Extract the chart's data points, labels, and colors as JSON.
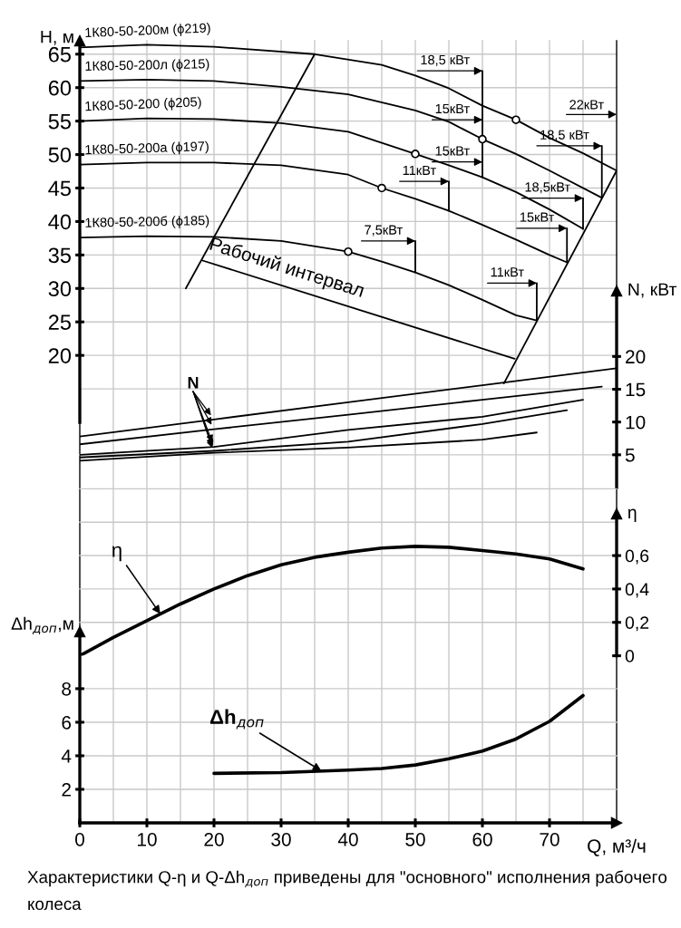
{
  "chart_data": [
    {
      "type": "line",
      "ylabel": "H, м",
      "xlim": [
        0,
        80
      ],
      "ylim": [
        10,
        67
      ],
      "yticks": [
        20,
        25,
        30,
        35,
        40,
        45,
        50,
        55,
        60,
        65
      ],
      "tick_labels": "y",
      "grid": true,
      "series": [
        {
          "name": "1К80-50-200м (ϕ219)",
          "color": "#000000",
          "x": [
            0,
            10,
            20,
            35,
            45,
            50,
            55,
            60,
            65,
            70,
            75,
            80
          ],
          "values": [
            66.0,
            66.4,
            66.1,
            65.0,
            63.4,
            61.8,
            59.9,
            57.3,
            55.2,
            52.5,
            50.2,
            47.6
          ]
        },
        {
          "name": "1К80-50-200л (ϕ215)",
          "color": "#000000",
          "x": [
            0,
            10,
            20,
            30,
            40,
            50,
            55,
            60,
            65,
            70,
            77.7
          ],
          "values": [
            61.0,
            61.2,
            61.0,
            60.1,
            59.0,
            56.6,
            54.9,
            52.3,
            50.1,
            47.6,
            43.6
          ]
        },
        {
          "name": "1К80-50-200 (ϕ205)",
          "color": "#000000",
          "x": [
            0,
            10,
            20,
            30,
            40,
            50,
            55,
            60,
            65,
            70,
            75
          ],
          "values": [
            55.0,
            55.4,
            55.3,
            54.7,
            53.4,
            50.1,
            48.4,
            46.6,
            44.4,
            41.8,
            38.9
          ]
        },
        {
          "name": "1К80-50-200а (ϕ197)",
          "color": "#000000",
          "x": [
            0,
            10,
            20,
            30,
            40,
            45,
            50,
            55,
            60,
            65,
            70,
            72.6
          ],
          "values": [
            48.5,
            48.8,
            48.8,
            48.4,
            47.0,
            45.0,
            43.4,
            41.6,
            39.5,
            37.3,
            35.0,
            33.9
          ]
        },
        {
          "name": "1К80-50-200б (ϕ185)",
          "color": "#000000",
          "x": [
            0,
            10,
            20,
            30,
            40,
            45,
            50,
            55,
            60,
            65,
            68.1
          ],
          "values": [
            37.6,
            37.8,
            37.7,
            37.1,
            35.5,
            34.0,
            32.4,
            30.5,
            28.3,
            26.0,
            25.2
          ]
        },
        {
          "type": "scatter",
          "marker": "circle",
          "color": "#000000",
          "x": [
            65,
            60,
            50,
            45,
            40
          ],
          "values": [
            55.2,
            52.3,
            50.1,
            45.0,
            35.5
          ]
        },
        {
          "color": "#000000",
          "x": [
            60,
            60
          ],
          "values": [
            62.5,
            46.6
          ]
        },
        {
          "color": "#000000",
          "x": [
            77.8,
            77.8
          ],
          "values": [
            51.3,
            43.6
          ]
        },
        {
          "color": "#000000",
          "x": [
            55,
            55
          ],
          "values": [
            46.0,
            41.6
          ]
        },
        {
          "color": "#000000",
          "x": [
            75,
            75
          ],
          "values": [
            43.5,
            38.9
          ]
        },
        {
          "color": "#000000",
          "x": [
            72.6,
            72.6
          ],
          "values": [
            39.0,
            33.9
          ]
        },
        {
          "color": "#000000",
          "x": [
            50,
            50
          ],
          "values": [
            37.1,
            32.4
          ]
        },
        {
          "color": "#000000",
          "x": [
            68.1,
            68.1
          ],
          "values": [
            30.8,
            25.2
          ]
        },
        {
          "color": "#000000",
          "x": [
            35,
            15.8
          ],
          "values": [
            65,
            30
          ]
        },
        {
          "color": "#000000",
          "x": [
            80,
            63.2
          ],
          "values": [
            47.6,
            15.8
          ]
        },
        {
          "name": "Рабочий интервал",
          "color": "#000000",
          "x": [
            18.2,
            64.8
          ],
          "values": [
            34.2,
            19.5
          ]
        }
      ],
      "annotations": [
        {
          "text": "18,5 кВт",
          "x": 60,
          "y": 62.5
        },
        "22кВт",
        {
          "text": "15кВт",
          "x": 60,
          "y": 55.2
        },
        {
          "text": "18,5 кВт",
          "x": 77.8,
          "y": 51.3
        },
        {
          "text": "15кВт",
          "x": 60,
          "y": 48.9
        },
        {
          "text": "11кВт",
          "x": 55,
          "y": 46.0
        },
        {
          "text": "18,5кВт",
          "x": 75,
          "y": 43.5
        },
        {
          "text": "15кВт",
          "x": 72.6,
          "y": 39.0
        },
        {
          "text": "7,5кВт",
          "x": 50,
          "y": 37.1
        },
        {
          "text": "11кВт",
          "x": 68.1,
          "y": 30.8
        }
      ]
    },
    {
      "type": "line",
      "ylabel": "N, кВт",
      "xlim": [
        0,
        80
      ],
      "ylim": [
        0,
        30
      ],
      "yticks": [
        5,
        10,
        15,
        20
      ],
      "tick_labels": "y",
      "grid": "y",
      "series": [
        {
          "color": "#000000",
          "x": [
            0,
            20,
            40,
            60,
            80
          ],
          "values": [
            7.8,
            10.4,
            13.0,
            15.6,
            18.2
          ]
        },
        {
          "color": "#000000",
          "x": [
            0,
            20,
            40,
            60,
            77.8
          ],
          "values": [
            6.6,
            8.9,
            11.1,
            13.4,
            15.4
          ]
        },
        {
          "color": "#000000",
          "x": [
            0,
            20,
            40,
            60,
            75
          ],
          "values": [
            5.0,
            6.2,
            8.8,
            10.8,
            13.4
          ]
        },
        {
          "color": "#000000",
          "x": [
            0,
            20,
            40,
            60,
            72.6
          ],
          "values": [
            4.6,
            5.6,
            7.0,
            9.7,
            11.8
          ]
        },
        {
          "color": "#000000",
          "x": [
            0,
            20,
            40,
            60,
            68.1
          ],
          "values": [
            4.1,
            5.3,
            6.1,
            7.3,
            8.4
          ]
        }
      ],
      "annotations": [
        {
          "text": "N",
          "x": 20,
          "y": 6.2
        }
      ]
    },
    {
      "type": "line",
      "ylabel": "η",
      "xlim": [
        0,
        80
      ],
      "ylim": [
        0,
        0.85
      ],
      "yticks": [
        {
          "value": 0,
          "label": "0"
        },
        {
          "value": 0.2,
          "label": "0,2"
        },
        {
          "value": 0.4,
          "label": "0,4"
        },
        {
          "value": 0.6,
          "label": "0,6"
        }
      ],
      "tick_labels": "y",
      "grid": "y",
      "series": [
        {
          "color": "#000000",
          "x": [
            0,
            5,
            10,
            15,
            20,
            25,
            30,
            35,
            40,
            45,
            50,
            55,
            60,
            65,
            70,
            75
          ],
          "values": [
            0,
            0.11,
            0.21,
            0.31,
            0.4,
            0.48,
            0.545,
            0.59,
            0.62,
            0.645,
            0.655,
            0.65,
            0.63,
            0.61,
            0.58,
            0.52
          ]
        }
      ],
      "annotations": [
        {
          "text": "η",
          "x": 12,
          "y": 0.25
        }
      ]
    },
    {
      "type": "line",
      "ylabel": "Δh$_{доп}$,м",
      "xlabel": "Q, м³/ч",
      "xlim": [
        0,
        80
      ],
      "xticks": [
        0,
        10,
        20,
        30,
        40,
        50,
        60,
        70
      ],
      "ylim": [
        0,
        11.4
      ],
      "yticks": [
        2,
        4,
        6,
        8
      ],
      "grid": "y",
      "series": [
        {
          "color": "#000000",
          "x": [
            20,
            30,
            40,
            45,
            50,
            55,
            60,
            65,
            70,
            75
          ],
          "values": [
            2.95,
            3.0,
            3.15,
            3.24,
            3.45,
            3.82,
            4.28,
            5.0,
            6.05,
            7.59
          ]
        }
      ],
      "annotations": [
        {
          "text": "Δh$_{доп}$",
          "x": 36,
          "y": 3.1
        },
        "Характеристики Q-η и Q-Δh$_{доп}$ приведены для \"основного\" исполнения рабочего колеса"
      ]
    }
  ]
}
